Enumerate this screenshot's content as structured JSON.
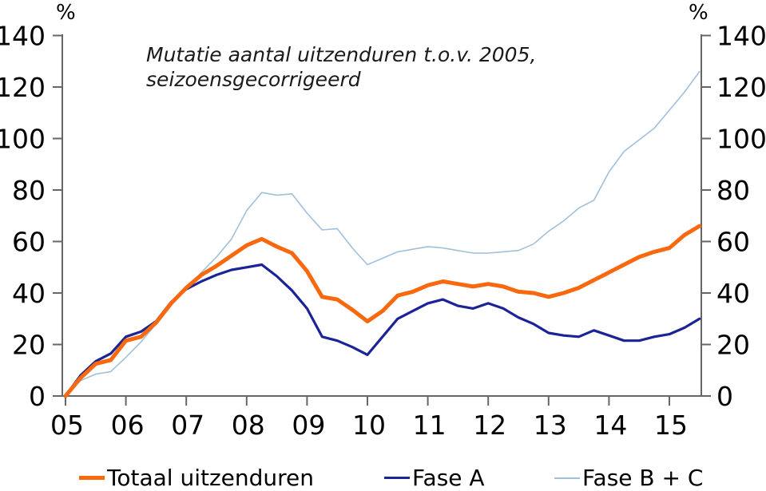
{
  "units": {
    "left": "%",
    "right": "%"
  },
  "title": {
    "line1": "Mutatie aantal uitzenduren t.o.v. 2005,",
    "line2": "seizoensgecorrigeerd"
  },
  "chart_data": {
    "type": "line",
    "title": "Mutatie aantal uitzenduren t.o.v. 2005, seizoensgecorrigeerd",
    "unit": "%",
    "grid": false,
    "legend_position": "bottom",
    "ylim": [
      0,
      140
    ],
    "y_ticks": [
      0,
      20,
      40,
      60,
      80,
      100,
      120,
      140
    ],
    "y_tick_labels": [
      "0",
      "20",
      "40",
      "60",
      "80",
      "100",
      "120",
      "140"
    ],
    "x_tick_values": [
      2005,
      2006,
      2007,
      2008,
      2009,
      2010,
      2011,
      2012,
      2013,
      2014,
      2015
    ],
    "x_tick_labels": [
      "05",
      "06",
      "07",
      "08",
      "09",
      "10",
      "11",
      "12",
      "13",
      "14",
      "15"
    ],
    "x": [
      2005,
      2005.25,
      2005.5,
      2005.75,
      2006,
      2006.25,
      2006.5,
      2006.75,
      2007,
      2007.25,
      2007.5,
      2007.75,
      2008,
      2008.25,
      2008.5,
      2008.75,
      2009,
      2009.25,
      2009.5,
      2009.75,
      2010,
      2010.25,
      2010.5,
      2010.75,
      2011,
      2011.25,
      2011.5,
      2011.75,
      2012,
      2012.25,
      2012.5,
      2012.75,
      2013,
      2013.25,
      2013.5,
      2013.75,
      2014,
      2014.25,
      2014.5,
      2014.75,
      2015,
      2015.25,
      2015.5
    ],
    "series": [
      {
        "name": "Totaal uitzenduren",
        "color": "#F8690F",
        "line_width": 5,
        "values": [
          0,
          7,
          12.5,
          14,
          21.5,
          23,
          28.5,
          36,
          42,
          47,
          50.5,
          54.5,
          58.5,
          61,
          58,
          55.5,
          48.5,
          38.5,
          37.5,
          33.5,
          29,
          33,
          39,
          40.5,
          43,
          44.5,
          43.5,
          42.5,
          43.5,
          42.5,
          40.5,
          40,
          38.5,
          40,
          42,
          45,
          48,
          51,
          54,
          56,
          57.5,
          62.5,
          66
        ]
      },
      {
        "name": "Fase A",
        "color": "#1B2496",
        "line_width": 3.2,
        "values": [
          0,
          8,
          13.5,
          16.5,
          23,
          25,
          29,
          36.5,
          41.5,
          44.5,
          47,
          49,
          50,
          51,
          46.5,
          41,
          34,
          23,
          21.5,
          19,
          16,
          23,
          30,
          33,
          36,
          37.5,
          35,
          34,
          36,
          34,
          30.5,
          28,
          24.5,
          23.5,
          23,
          25.5,
          23.5,
          21.5,
          21.5,
          23,
          24,
          26.5,
          30
        ]
      },
      {
        "name": "Fase B + C",
        "color": "#A2BFDB",
        "line_width": 1.6,
        "values": [
          0,
          6,
          8.5,
          9.5,
          15,
          21,
          28,
          35.5,
          41.5,
          48,
          54,
          61,
          72,
          79,
          78,
          78.5,
          71,
          64.5,
          65,
          57.5,
          51,
          53.5,
          56,
          57,
          58,
          57.5,
          56.5,
          55.5,
          55.5,
          56,
          56.5,
          59,
          64,
          68,
          73,
          76,
          87,
          95,
          99.5,
          104,
          111,
          118,
          126
        ]
      }
    ]
  }
}
